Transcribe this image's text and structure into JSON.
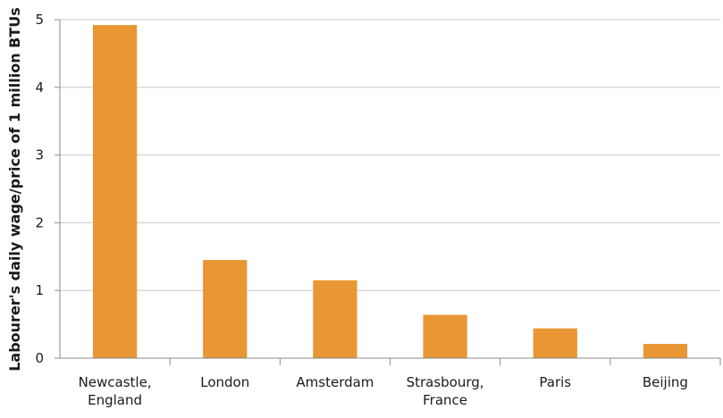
{
  "chart_data": {
    "type": "bar",
    "title": "",
    "xlabel": "",
    "ylabel": "Labourer's daily wage/price of 1 million BTUs",
    "categories": [
      [
        "Newcastle,",
        "England"
      ],
      [
        "London"
      ],
      [
        "Amsterdam"
      ],
      [
        "Strasbourg,",
        "France"
      ],
      [
        "Paris"
      ],
      [
        "Beijing"
      ]
    ],
    "values": [
      4.92,
      1.45,
      1.15,
      0.64,
      0.44,
      0.21
    ],
    "ylim": [
      0,
      5
    ],
    "yticks": [
      "0",
      "1",
      "2",
      "3",
      "4",
      "5"
    ],
    "grid": true,
    "legend": "none",
    "colors": {
      "bar": "#E89734",
      "grid": "#c9c9c9",
      "axis": "#8a8a8a",
      "text": "#1a1a1a"
    }
  }
}
